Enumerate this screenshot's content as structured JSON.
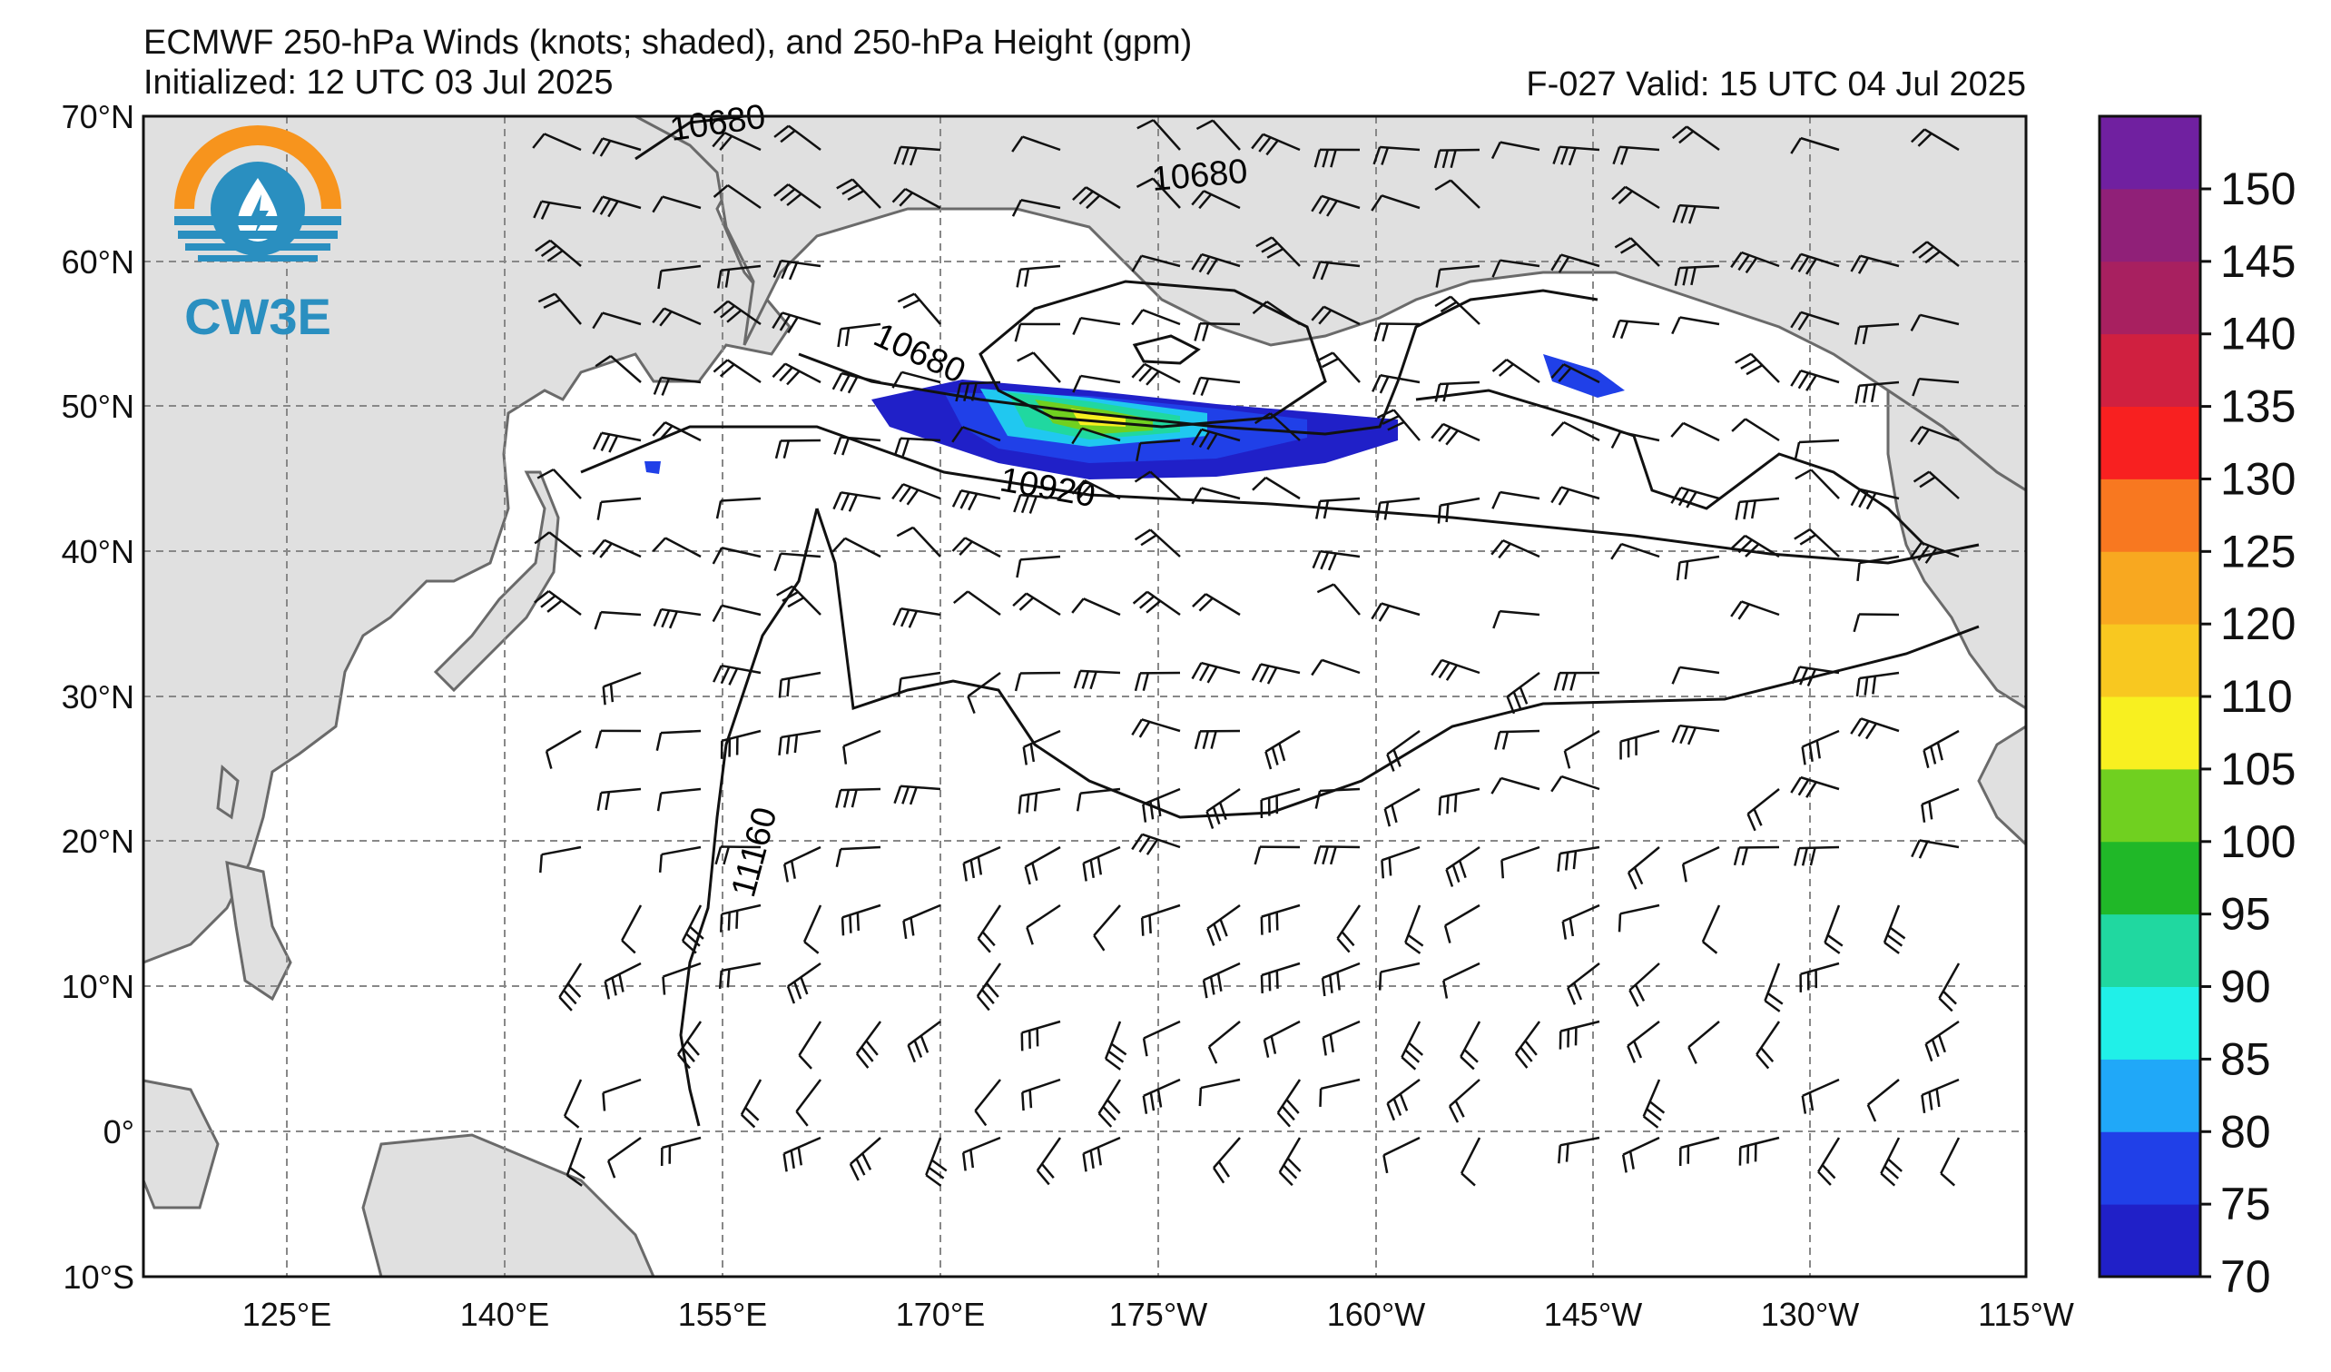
{
  "header": {
    "title_line1": "ECMWF 250-hPa Winds (knots; shaded), and 250-hPa Height (gpm)",
    "init_line": "Initialized: 12 UTC 03 Jul 2025",
    "valid_line": "F-027  Valid: 15 UTC 04 Jul 2025"
  },
  "logo": {
    "text": "CW3E",
    "colors": {
      "orange": "#f7941d",
      "blue": "#2a8fc0"
    }
  },
  "map": {
    "lat_labels": [
      "70°N",
      "60°N",
      "50°N",
      "40°N",
      "30°N",
      "20°N",
      "10°N",
      "0°",
      "10°S"
    ],
    "lon_labels": [
      "125°E",
      "140°E",
      "155°E",
      "170°E",
      "175°W",
      "160°W",
      "145°W",
      "130°W",
      "115°W"
    ],
    "contour_labels": [
      "10680",
      "10680",
      "10680",
      "10920",
      "11160"
    ],
    "land_color": "#e0e0e0",
    "coast_color": "#6a6a6a"
  },
  "colorbar": {
    "labels": [
      "150",
      "145",
      "140",
      "135",
      "130",
      "125",
      "120",
      "110",
      "105",
      "100",
      "95",
      "90",
      "85",
      "80",
      "75",
      "70"
    ],
    "colors": [
      "#2020c8",
      "#2040e8",
      "#20a8f8",
      "#20f0e8",
      "#20d8a0",
      "#20b828",
      "#70d020",
      "#f8f020",
      "#f8c820",
      "#f8a820",
      "#f87820",
      "#f82020",
      "#d02040",
      "#a82060",
      "#902078",
      "#7020a0"
    ]
  }
}
